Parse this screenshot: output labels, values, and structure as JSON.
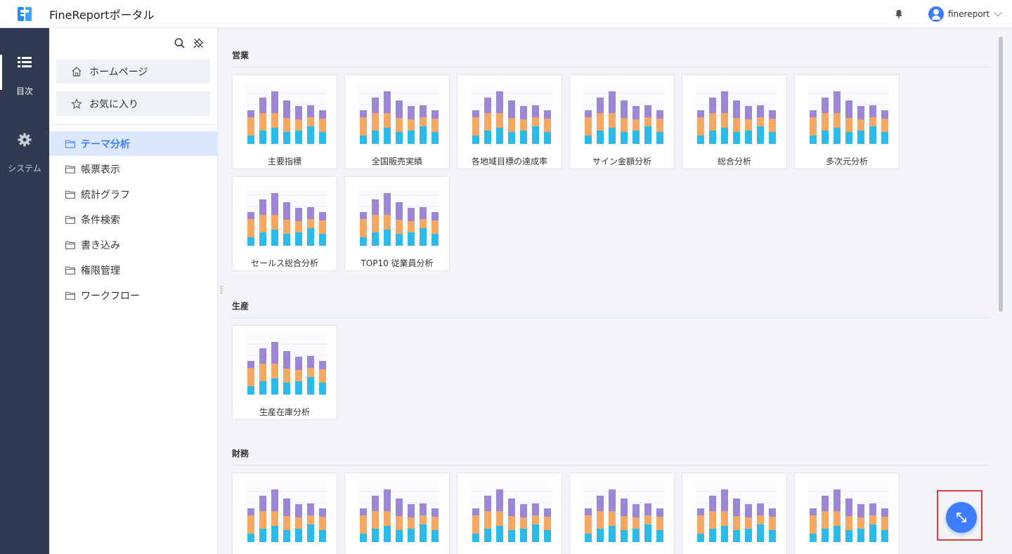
{
  "header": {
    "app_title": "FineReportポータル",
    "username": "finereport",
    "bell_icon": "bell-icon",
    "logo_icon": "finereport-logo"
  },
  "leftnav": {
    "items": [
      {
        "label": "目次",
        "icon": "list-icon",
        "active": true
      },
      {
        "label": "システム",
        "icon": "gear-icon",
        "active": false
      }
    ]
  },
  "directory": {
    "tools": [
      "search-icon",
      "unpin-icon"
    ],
    "quick": [
      {
        "label": "ホームページ",
        "icon": "home-icon"
      },
      {
        "label": "お気に入り",
        "icon": "star-icon"
      }
    ],
    "folders": [
      {
        "label": "テーマ分析",
        "active": true
      },
      {
        "label": "帳票表示"
      },
      {
        "label": "統計グラフ"
      },
      {
        "label": "条件検索"
      },
      {
        "label": "書き込み"
      },
      {
        "label": "権限管理"
      },
      {
        "label": "ワークフロー"
      }
    ]
  },
  "sections": [
    {
      "title": "営業",
      "cards": [
        "主要指標",
        "全国販売実績",
        "各地域目標の達成率",
        "サイン金額分析",
        "総合分析",
        "多次元分析",
        "セールス総合分析",
        "TOP10 従業員分析"
      ]
    },
    {
      "title": "生産",
      "cards": [
        "生産在庫分析"
      ]
    },
    {
      "title": "財務",
      "cards": [
        "",
        "",
        "",
        "",
        "",
        ""
      ]
    }
  ],
  "colors": {
    "accent": "#3d7cff",
    "nav_bg": "#2e3b52",
    "bar_top": "#9b87d6",
    "bar_mid": "#f6a863",
    "bar_bottom": "#2bbbea",
    "highlight_frame": "#e53935"
  },
  "expand_button": {
    "icon": "expand-arrows-icon"
  }
}
